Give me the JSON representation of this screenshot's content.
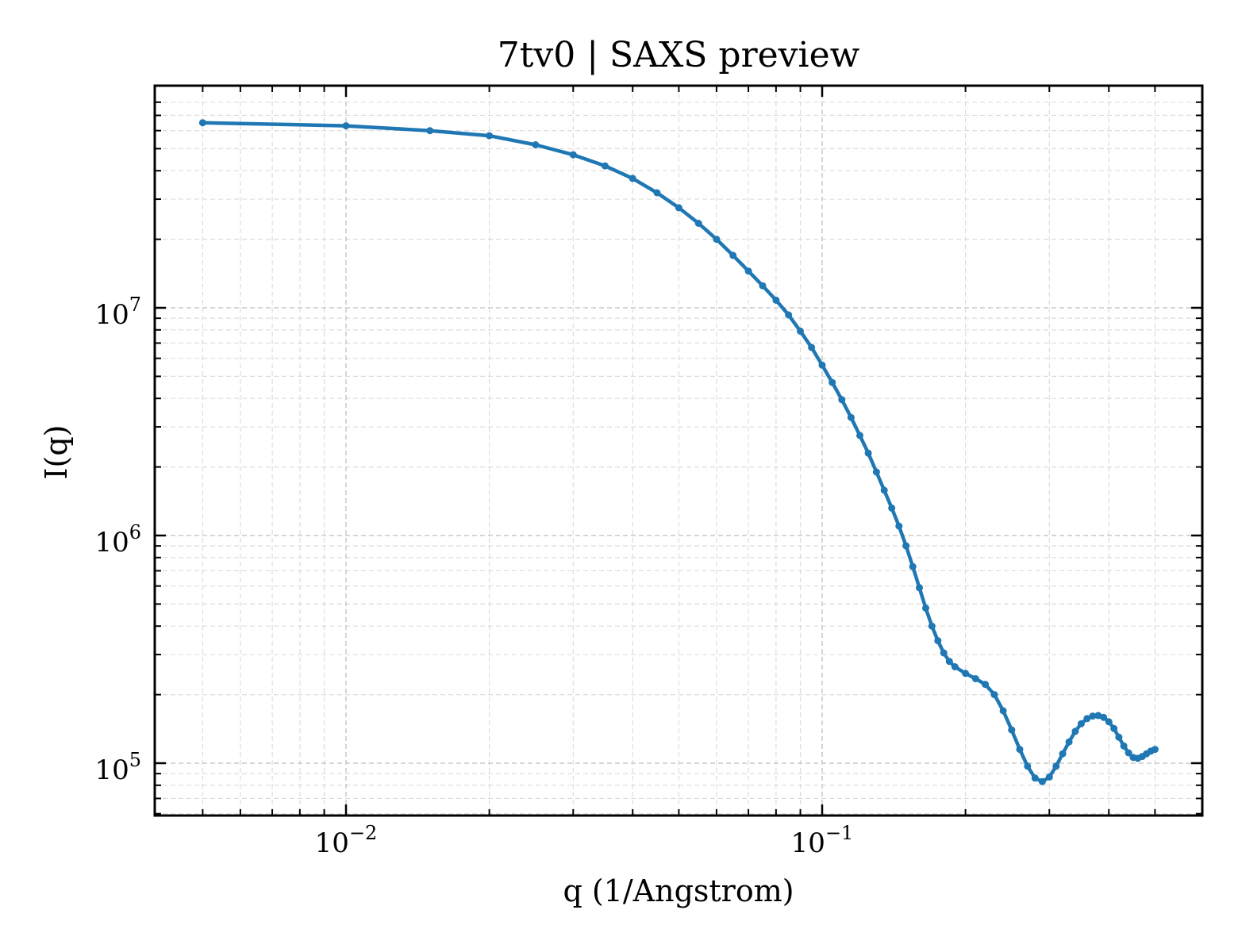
{
  "chart_data": {
    "type": "line",
    "title": "7tv0 | SAXS preview",
    "xlabel": "q (1/Angstrom)",
    "ylabel": "I(q)",
    "xscale": "log",
    "yscale": "log",
    "xlim": [
      0.005,
      0.5
    ],
    "ylim": [
      60000,
      80000000
    ],
    "grid": true,
    "grid_style": "dashed, major and minor",
    "line_color": "#1f77b4",
    "marker": "dot",
    "x_ticks": [
      {
        "mantissa": "10",
        "exponent": "−2",
        "value": 0.01
      },
      {
        "mantissa": "10",
        "exponent": "−1",
        "value": 0.1
      }
    ],
    "y_ticks": [
      {
        "mantissa": "10",
        "exponent": "5",
        "value": 100000
      },
      {
        "mantissa": "10",
        "exponent": "6",
        "value": 1000000
      },
      {
        "mantissa": "10",
        "exponent": "7",
        "value": 10000000
      }
    ],
    "series": [
      {
        "x": [
          0.005,
          0.01,
          0.015,
          0.02,
          0.025,
          0.03,
          0.035,
          0.04,
          0.045,
          0.05,
          0.055,
          0.06,
          0.065,
          0.07,
          0.075,
          0.08,
          0.085,
          0.09,
          0.095,
          0.1,
          0.105,
          0.11,
          0.115,
          0.12,
          0.125,
          0.13,
          0.135,
          0.14,
          0.145,
          0.15,
          0.155,
          0.16,
          0.165,
          0.17,
          0.175,
          0.18,
          0.185,
          0.19,
          0.2,
          0.21,
          0.22,
          0.23,
          0.24,
          0.25,
          0.26,
          0.27,
          0.28,
          0.29,
          0.3,
          0.31,
          0.32,
          0.33,
          0.34,
          0.35,
          0.36,
          0.37,
          0.38,
          0.39,
          0.4,
          0.41,
          0.42,
          0.43,
          0.44,
          0.45,
          0.46,
          0.47,
          0.48,
          0.49,
          0.5
        ],
        "y": [
          65000000,
          63000000,
          60000000,
          57000000,
          52000000,
          47000000,
          42000000,
          37000000,
          32000000,
          27500000,
          23500000,
          20000000,
          17000000,
          14500000,
          12500000,
          10800000,
          9300000,
          7900000,
          6700000,
          5600000,
          4700000,
          3950000,
          3300000,
          2750000,
          2300000,
          1900000,
          1580000,
          1320000,
          1100000,
          900000,
          730000,
          590000,
          480000,
          400000,
          345000,
          305000,
          280000,
          265000,
          248000,
          235000,
          222000,
          200000,
          170000,
          140000,
          115000,
          97000,
          86000,
          83000,
          87000,
          97000,
          110000,
          124000,
          138000,
          149000,
          157000,
          161000,
          162000,
          159000,
          152000,
          142000,
          130000,
          119000,
          111000,
          106000,
          105000,
          107000,
          110000,
          113000,
          115000
        ]
      }
    ]
  }
}
